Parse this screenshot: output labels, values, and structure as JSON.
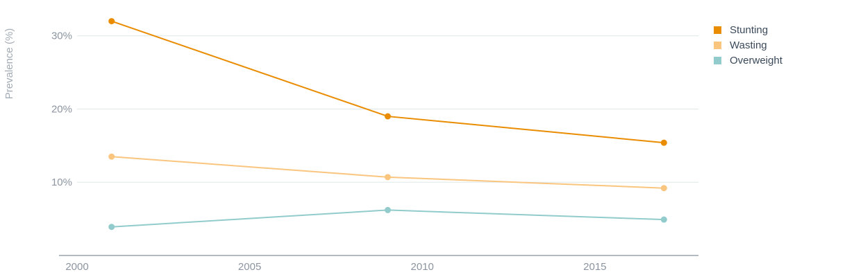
{
  "chart_data": {
    "type": "line",
    "title": "",
    "xlabel": "",
    "ylabel": "Prevalence (%)",
    "xlim": [
      2000,
      2018
    ],
    "ylim": [
      0,
      33
    ],
    "x_ticks": [
      2000,
      2005,
      2010,
      2015
    ],
    "x_tick_labels": [
      "2000",
      "2005",
      "2010",
      "2015"
    ],
    "y_ticks": [
      10,
      20,
      30
    ],
    "y_tick_labels": [
      "10%",
      "20%",
      "30%"
    ],
    "grid": "horizontal",
    "legend_position": "top-right",
    "series": [
      {
        "name": "Stunting",
        "color": "#EA8C00",
        "x": [
          2001,
          2009,
          2017
        ],
        "y": [
          32.0,
          19.0,
          15.4
        ]
      },
      {
        "name": "Wasting",
        "color": "#F9C57F",
        "x": [
          2001,
          2009,
          2017
        ],
        "y": [
          13.5,
          10.7,
          9.2
        ]
      },
      {
        "name": "Overweight",
        "color": "#92CBCB",
        "x": [
          2001,
          2009,
          2017
        ],
        "y": [
          3.9,
          6.2,
          4.9
        ]
      }
    ]
  }
}
